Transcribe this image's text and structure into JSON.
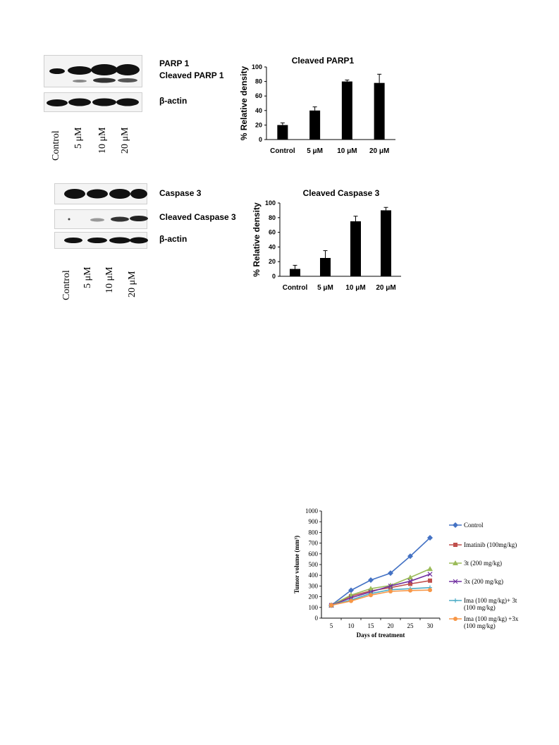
{
  "blot1": {
    "labels": [
      "PARP 1",
      "Cleaved PARP 1",
      "β-actin"
    ],
    "lanes": [
      "Control",
      "5 μM",
      "10 μM",
      "20 μM"
    ]
  },
  "blot2": {
    "labels": [
      "Caspase 3",
      "Cleaved Caspase 3",
      "β-actin"
    ],
    "lanes": [
      "Control",
      "5 μM",
      "10 μM",
      "20 μM"
    ]
  },
  "chart_data": [
    {
      "type": "bar",
      "title": "Cleaved PARP1",
      "ylabel": "% Relative density",
      "xlabel": "",
      "categories": [
        "Control",
        "5 μM",
        "10 μM",
        "20 μM"
      ],
      "values": [
        20,
        40,
        80,
        78
      ],
      "errors": [
        3,
        5,
        2,
        12
      ],
      "ylim": [
        0,
        100
      ],
      "yticks": [
        0,
        20,
        40,
        60,
        80,
        100
      ],
      "bar_color": "#000000"
    },
    {
      "type": "bar",
      "title": "Cleaved Caspase 3",
      "ylabel": "% Relative density",
      "xlabel": "",
      "categories": [
        "Control",
        "5 μM",
        "10 μM",
        "20 μM"
      ],
      "values": [
        10,
        25,
        75,
        90
      ],
      "errors": [
        5,
        10,
        7,
        4
      ],
      "ylim": [
        0,
        100
      ],
      "yticks": [
        0,
        20,
        40,
        60,
        80,
        100
      ],
      "bar_color": "#000000"
    },
    {
      "type": "line",
      "title": "",
      "xlabel": "Days of treatment",
      "ylabel": "Tumor volume (mm³)",
      "x": [
        5,
        10,
        15,
        20,
        25,
        30
      ],
      "ylim": [
        0,
        1000
      ],
      "yticks": [
        0,
        100,
        200,
        300,
        400,
        500,
        600,
        700,
        800,
        900,
        1000
      ],
      "legend_position": "right",
      "series": [
        {
          "name": "Control",
          "color": "#4472C4",
          "marker": "diamond",
          "values": [
            120,
            260,
            355,
            420,
            578,
            750
          ]
        },
        {
          "name": "Imatinib (100mg/kg)",
          "color": "#C0504D",
          "marker": "square",
          "values": [
            120,
            205,
            255,
            285,
            320,
            350
          ]
        },
        {
          "name": "3t (200 mg/kg)",
          "color": "#9BBB59",
          "marker": "triangle",
          "values": [
            120,
            215,
            275,
            305,
            380,
            460
          ]
        },
        {
          "name": "3x (200 mg/kg)",
          "color": "#7030A0",
          "marker": "x",
          "values": [
            120,
            190,
            245,
            300,
            345,
            410
          ]
        },
        {
          "name": "Ima (100 mg/kg)+ 3t (100 mg/kg)",
          "color": "#4BACC6",
          "marker": "plus",
          "values": [
            120,
            170,
            230,
            265,
            275,
            285
          ]
        },
        {
          "name": "Ima (100 mg/kg) +3x (100 mg/kg)",
          "color": "#F79646",
          "marker": "circle",
          "values": [
            120,
            160,
            215,
            250,
            258,
            262
          ]
        }
      ]
    }
  ]
}
